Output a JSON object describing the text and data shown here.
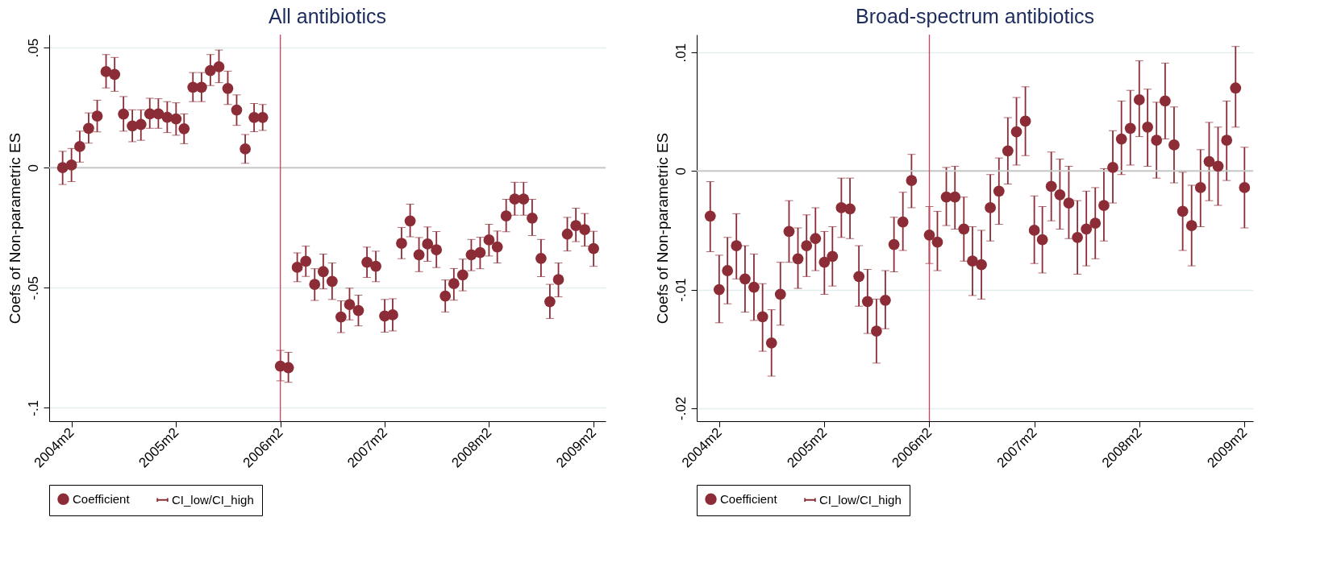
{
  "chart_data": [
    {
      "type": "scatter",
      "title": "All antibiotics",
      "ylabel": "Coefs of Non-parametric ES",
      "annotations": [
        "CI_low/CI_high"
      ],
      "xlim": [
        "2003-11-15",
        "2009-03-15"
      ],
      "xticks": [
        {
          "value": "2004-02",
          "label": "2004m2"
        },
        {
          "value": "2005-02",
          "label": "2005m2"
        },
        {
          "value": "2006-02",
          "label": "2006m2"
        },
        {
          "value": "2007-02",
          "label": "2007m2"
        },
        {
          "value": "2008-02",
          "label": "2008m2"
        },
        {
          "value": "2009-02",
          "label": "2009m2"
        }
      ],
      "ylim": [
        -0.1056,
        0.0554
      ],
      "yticks": [
        {
          "value": -0.1,
          "label": "-.1"
        },
        {
          "value": -0.05,
          "label": "-.05"
        },
        0,
        {
          "value": 0.05,
          "label": ".05"
        }
      ],
      "grid": "y",
      "legend": "bottom",
      "marker": "circle",
      "ref_lines": [
        {
          "axis": "x",
          "value": "2006-02",
          "color": "#d0415f"
        },
        {
          "axis": "y",
          "value": 0,
          "color": "#c8c8c8"
        }
      ],
      "series": [
        {
          "name": "Coefficient",
          "color": "#8b2c36",
          "x": [
            "2004-01",
            "2004-02",
            "2004-03",
            "2004-04",
            "2004-05",
            "2004-06",
            "2004-07",
            "2004-08",
            "2004-09",
            "2004-10",
            "2004-11",
            "2004-12",
            "2005-01",
            "2005-02",
            "2005-03",
            "2005-04",
            "2005-05",
            "2005-06",
            "2005-07",
            "2005-08",
            "2005-09",
            "2005-10",
            "2005-11",
            "2005-12",
            "2006-02",
            "2006-03",
            "2006-04",
            "2006-05",
            "2006-06",
            "2006-07",
            "2006-08",
            "2006-09",
            "2006-10",
            "2006-11",
            "2006-12",
            "2007-01",
            "2007-02",
            "2007-03",
            "2007-04",
            "2007-05",
            "2007-06",
            "2007-07",
            "2007-08",
            "2007-09",
            "2007-10",
            "2007-11",
            "2007-12",
            "2008-01",
            "2008-02",
            "2008-03",
            "2008-04",
            "2008-05",
            "2008-06",
            "2008-07",
            "2008-08",
            "2008-09",
            "2008-10",
            "2008-11",
            "2008-12",
            "2009-01",
            "2009-02"
          ],
          "values": [
            0.0,
            0.0011,
            0.0088,
            0.0164,
            0.0215,
            0.04,
            0.0388,
            0.0223,
            0.0174,
            0.018,
            0.0224,
            0.0224,
            0.021,
            0.0203,
            0.0162,
            0.0335,
            0.0335,
            0.0404,
            0.042,
            0.033,
            0.024,
            0.0078,
            0.0209,
            0.0209,
            -0.0827,
            -0.0833,
            -0.0415,
            -0.039,
            -0.0486,
            -0.0433,
            -0.0474,
            -0.0622,
            -0.057,
            -0.0595,
            -0.0394,
            -0.0411,
            -0.0618,
            -0.0613,
            -0.0315,
            -0.0222,
            -0.0363,
            -0.0318,
            -0.0342,
            -0.0535,
            -0.0483,
            -0.0447,
            -0.0363,
            -0.0354,
            -0.0301,
            -0.033,
            -0.0201,
            -0.0131,
            -0.0131,
            -0.021,
            -0.0378,
            -0.0558,
            -0.0466,
            -0.0277,
            -0.0241,
            -0.0258,
            -0.0337
          ],
          "errors": [
            [
              -0.007,
              0.0068
            ],
            [
              -0.0058,
              0.008
            ],
            [
              0.0023,
              0.0152
            ],
            [
              0.0102,
              0.0228
            ],
            [
              0.0149,
              0.0281
            ],
            [
              0.0332,
              0.0471
            ],
            [
              0.0318,
              0.0459
            ],
            [
              0.0152,
              0.0296
            ],
            [
              0.0108,
              0.0241
            ],
            [
              0.0114,
              0.0241
            ],
            [
              0.0164,
              0.0289
            ],
            [
              0.0164,
              0.0287
            ],
            [
              0.0146,
              0.0275
            ],
            [
              0.0135,
              0.027
            ],
            [
              0.01,
              0.0224
            ],
            [
              0.0275,
              0.0396
            ],
            [
              0.0275,
              0.0396
            ],
            [
              0.0342,
              0.0471
            ],
            [
              0.0354,
              0.049
            ],
            [
              0.0263,
              0.0402
            ],
            [
              0.0176,
              0.0303
            ],
            [
              0.0018,
              0.0138
            ],
            [
              0.015,
              0.0267
            ],
            [
              0.0155,
              0.0263
            ],
            [
              -0.0888,
              -0.0761
            ],
            [
              -0.0894,
              -0.0769
            ],
            [
              -0.0475,
              -0.0355
            ],
            [
              -0.0453,
              -0.0327
            ],
            [
              -0.0553,
              -0.0421
            ],
            [
              -0.0505,
              -0.036
            ],
            [
              -0.0549,
              -0.0397
            ],
            [
              -0.0687,
              -0.0555
            ],
            [
              -0.0634,
              -0.0502
            ],
            [
              -0.0659,
              -0.0531
            ],
            [
              -0.0457,
              -0.0331
            ],
            [
              -0.0475,
              -0.0348
            ],
            [
              -0.0685,
              -0.0549
            ],
            [
              -0.068,
              -0.0546
            ],
            [
              -0.0379,
              -0.0249
            ],
            [
              -0.0288,
              -0.0152
            ],
            [
              -0.0433,
              -0.0291
            ],
            [
              -0.039,
              -0.0247
            ],
            [
              -0.0416,
              -0.0266
            ],
            [
              -0.0601,
              -0.0468
            ],
            [
              -0.0552,
              -0.042
            ],
            [
              -0.0513,
              -0.0381
            ],
            [
              -0.0429,
              -0.0299
            ],
            [
              -0.0421,
              -0.029
            ],
            [
              -0.0368,
              -0.0236
            ],
            [
              -0.0397,
              -0.0264
            ],
            [
              -0.0267,
              -0.0132
            ],
            [
              -0.0198,
              -0.0061
            ],
            [
              -0.0198,
              -0.0061
            ],
            [
              -0.0283,
              -0.0132
            ],
            [
              -0.0454,
              -0.0299
            ],
            [
              -0.0628,
              -0.0486
            ],
            [
              -0.0538,
              -0.0397
            ],
            [
              -0.0347,
              -0.0207
            ],
            [
              -0.0308,
              -0.0169
            ],
            [
              -0.0327,
              -0.0191
            ],
            [
              -0.0411,
              -0.0265
            ]
          ]
        }
      ]
    },
    {
      "type": "scatter",
      "title": "Broad-spectrum antibiotics",
      "ylabel": "Coefs of Non-parametric ES",
      "annotations": [
        "CI_low/CI_high"
      ],
      "xlim": [
        "2003-11-15",
        "2009-03-03"
      ],
      "xticks": [
        {
          "value": "2004-02",
          "label": "2004m2"
        },
        {
          "value": "2005-02",
          "label": "2005m2"
        },
        {
          "value": "2006-02",
          "label": "2006m2"
        },
        {
          "value": "2007-02",
          "label": "2007m2"
        },
        {
          "value": "2008-02",
          "label": "2008m2"
        },
        {
          "value": "2009-02",
          "label": "2009m2"
        }
      ],
      "ylim": [
        -0.0211,
        0.0115
      ],
      "yticks": [
        {
          "value": -0.02,
          "label": "-.02"
        },
        {
          "value": -0.01,
          "label": "-.01"
        },
        0,
        {
          "value": 0.01,
          "label": ".01"
        }
      ],
      "grid": "y",
      "legend": "bottom",
      "marker": "circle",
      "ref_lines": [
        {
          "axis": "x",
          "value": "2006-02",
          "color": "#d0415f"
        },
        {
          "axis": "y",
          "value": 0,
          "color": "#c8c8c8"
        }
      ],
      "series": [
        {
          "name": "Coefficient",
          "color": "#8b2c36",
          "x": [
            "2004-01",
            "2004-02",
            "2004-03",
            "2004-04",
            "2004-05",
            "2004-06",
            "2004-07",
            "2004-08",
            "2004-09",
            "2004-10",
            "2004-11",
            "2004-12",
            "2005-01",
            "2005-02",
            "2005-03",
            "2005-04",
            "2005-05",
            "2005-06",
            "2005-07",
            "2005-08",
            "2005-09",
            "2005-10",
            "2005-11",
            "2005-12",
            "2006-02",
            "2006-03",
            "2006-04",
            "2006-05",
            "2006-06",
            "2006-07",
            "2006-08",
            "2006-09",
            "2006-10",
            "2006-11",
            "2006-12",
            "2007-01",
            "2007-02",
            "2007-03",
            "2007-04",
            "2007-05",
            "2007-06",
            "2007-07",
            "2007-08",
            "2007-09",
            "2007-10",
            "2007-11",
            "2007-12",
            "2008-01",
            "2008-02",
            "2008-03",
            "2008-04",
            "2008-05",
            "2008-06",
            "2008-07",
            "2008-08",
            "2008-09",
            "2008-10",
            "2008-11",
            "2008-12",
            "2009-01",
            "2009-02"
          ],
          "values": [
            -0.0038,
            -0.01,
            -0.0084,
            -0.0063,
            -0.0091,
            -0.0098,
            -0.0123,
            -0.0145,
            -0.0104,
            -0.0051,
            -0.0074,
            -0.0063,
            -0.0057,
            -0.0077,
            -0.0072,
            -0.0031,
            -0.0032,
            -0.0089,
            -0.011,
            -0.0135,
            -0.0109,
            -0.0062,
            -0.0043,
            -0.0008,
            -0.0054,
            -0.006,
            -0.0022,
            -0.0022,
            -0.0049,
            -0.0076,
            -0.0079,
            -0.0031,
            -0.0017,
            0.0017,
            0.0033,
            0.0042,
            -0.005,
            -0.0058,
            -0.0013,
            -0.002,
            -0.0027,
            -0.0056,
            -0.0049,
            -0.0044,
            -0.0029,
            0.0003,
            0.0027,
            0.0036,
            0.006,
            0.0037,
            0.0026,
            0.0059,
            0.0022,
            -0.0034,
            -0.0046,
            -0.0014,
            0.0008,
            0.0004,
            0.0026,
            0.007,
            -0.0014
          ],
          "errors": [
            [
              -0.0068,
              -0.0009
            ],
            [
              -0.0128,
              -0.0071
            ],
            [
              -0.0112,
              -0.0056
            ],
            [
              -0.0091,
              -0.0036
            ],
            [
              -0.0119,
              -0.0063
            ],
            [
              -0.0126,
              -0.007
            ],
            [
              -0.0152,
              -0.0095
            ],
            [
              -0.0173,
              -0.0117
            ],
            [
              -0.013,
              -0.0077
            ],
            [
              -0.0077,
              -0.0025
            ],
            [
              -0.0099,
              -0.0048
            ],
            [
              -0.0089,
              -0.0037
            ],
            [
              -0.0084,
              -0.0031
            ],
            [
              -0.0104,
              -0.0051
            ],
            [
              -0.0097,
              -0.0047
            ],
            [
              -0.0056,
              -0.0006
            ],
            [
              -0.0057,
              -0.0006
            ],
            [
              -0.0114,
              -0.0063
            ],
            [
              -0.0137,
              -0.0083
            ],
            [
              -0.0162,
              -0.0108
            ],
            [
              -0.0133,
              -0.0084
            ],
            [
              -0.0085,
              -0.0039
            ],
            [
              -0.0067,
              -0.0018
            ],
            [
              -0.0031,
              0.0014
            ],
            [
              -0.0078,
              -0.003
            ],
            [
              -0.0084,
              -0.0034
            ],
            [
              -0.0046,
              0.0003
            ],
            [
              -0.0049,
              0.0004
            ],
            [
              -0.0076,
              -0.0022
            ],
            [
              -0.0105,
              -0.0047
            ],
            [
              -0.0108,
              -0.005
            ],
            [
              -0.0059,
              -0.0003
            ],
            [
              -0.0045,
              0.0011
            ],
            [
              -0.0011,
              0.0045
            ],
            [
              0.0005,
              0.0062
            ],
            [
              0.0013,
              0.0071
            ],
            [
              -0.0078,
              -0.0021
            ],
            [
              -0.0086,
              -0.003
            ],
            [
              -0.0042,
              0.0016
            ],
            [
              -0.0049,
              0.001
            ],
            [
              -0.0057,
              0.0004
            ],
            [
              -0.0087,
              -0.0025
            ],
            [
              -0.008,
              -0.0017
            ],
            [
              -0.0074,
              -0.0014
            ],
            [
              -0.0059,
              0.0002
            ],
            [
              -0.0027,
              0.0034
            ],
            [
              -0.0003,
              0.0059
            ],
            [
              0.0005,
              0.0068
            ],
            [
              0.0029,
              0.0093
            ],
            [
              0.0004,
              0.0069
            ],
            [
              -0.0006,
              0.0058
            ],
            [
              0.0027,
              0.0091
            ],
            [
              -0.001,
              0.0054
            ],
            [
              -0.0067,
              -0.0001
            ],
            [
              -0.008,
              -0.0012
            ],
            [
              -0.0047,
              0.0018
            ],
            [
              -0.0025,
              0.0041
            ],
            [
              -0.0029,
              0.0037
            ],
            [
              -0.0008,
              0.0059
            ],
            [
              0.0037,
              0.0105
            ],
            [
              -0.0048,
              0.002
            ]
          ]
        }
      ]
    }
  ]
}
